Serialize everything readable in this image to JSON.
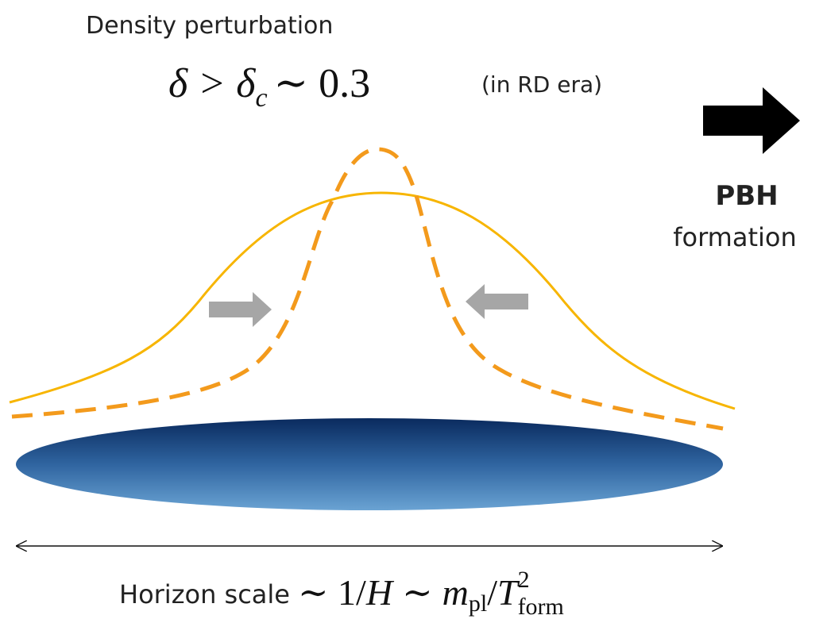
{
  "header": {
    "title": "Density perturbation"
  },
  "condition": {
    "lhs": "δ > δ",
    "lhs_sub": "c",
    "rhs": "∼ 0.3",
    "note": "(in RD era)"
  },
  "result": {
    "label": "PBH",
    "text": "formation"
  },
  "scale": {
    "label": "Horizon scale",
    "rel": "∼ 1/",
    "h": "H",
    "sim": "∼",
    "m": "m",
    "m_sub": "pl",
    "slash": "/",
    "t": "T",
    "t_sup": "2",
    "t_sub": "form"
  }
}
